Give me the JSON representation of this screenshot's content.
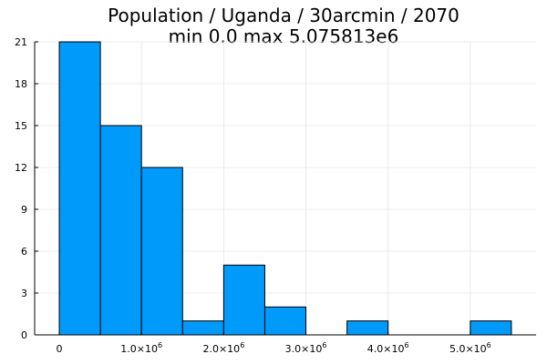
{
  "chart_data": {
    "type": "bar",
    "title_lines": [
      "Population / Uganda / 30arcmin / 2070",
      "min 0.0  max 5.075813e6"
    ],
    "xlabel": "",
    "ylabel": "",
    "bins": [
      {
        "start": 0,
        "end": 500000,
        "count": 21
      },
      {
        "start": 500000,
        "end": 1000000,
        "count": 15
      },
      {
        "start": 1000000,
        "end": 1500000,
        "count": 12
      },
      {
        "start": 1500000,
        "end": 2000000,
        "count": 1
      },
      {
        "start": 2000000,
        "end": 2500000,
        "count": 5
      },
      {
        "start": 2500000,
        "end": 3000000,
        "count": 2
      },
      {
        "start": 3000000,
        "end": 3500000,
        "count": 0
      },
      {
        "start": 3500000,
        "end": 4000000,
        "count": 1
      },
      {
        "start": 4000000,
        "end": 4500000,
        "count": 0
      },
      {
        "start": 4500000,
        "end": 5000000,
        "count": 0
      },
      {
        "start": 5000000,
        "end": 5500000,
        "count": 1
      }
    ],
    "xlim": [
      -300000,
      5800000
    ],
    "ylim": [
      0,
      21
    ],
    "x_ticks": [
      {
        "value": 0,
        "mantissa": "0",
        "exponent": ""
      },
      {
        "value": 1000000,
        "mantissa": "1.0×10",
        "exponent": "6"
      },
      {
        "value": 2000000,
        "mantissa": "2.0×10",
        "exponent": "6"
      },
      {
        "value": 3000000,
        "mantissa": "3.0×10",
        "exponent": "6"
      },
      {
        "value": 4000000,
        "mantissa": "4.0×10",
        "exponent": "6"
      },
      {
        "value": 5000000,
        "mantissa": "5.0×10",
        "exponent": "6"
      }
    ],
    "y_ticks": [
      0,
      3,
      6,
      9,
      12,
      15,
      18,
      21
    ],
    "bar_color": "#009AFA",
    "grid": true,
    "legend": "none"
  }
}
